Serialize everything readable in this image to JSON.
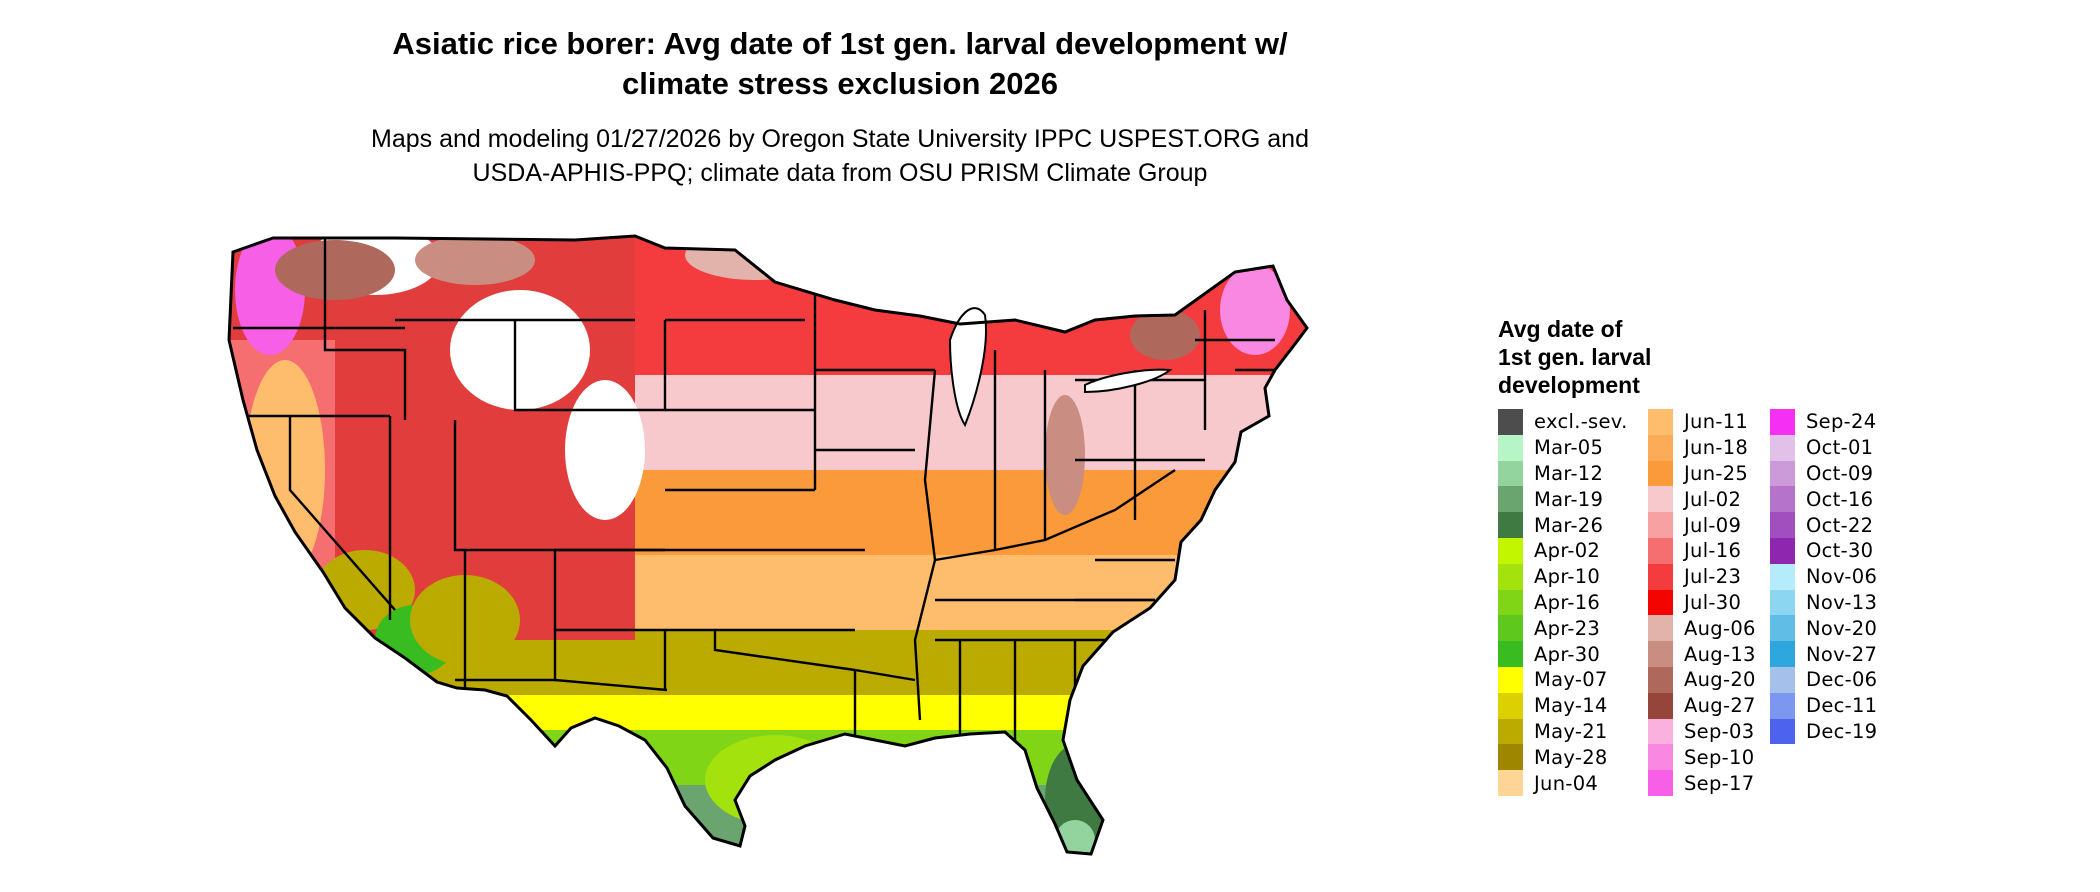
{
  "header": {
    "title_lines": [
      "Asiatic rice borer: Avg date of 1st gen. larval development w/",
      "climate stress exclusion 2026"
    ],
    "subtitle_lines": [
      "Maps and modeling 01/27/2026 by Oregon State University IPPC USPEST.ORG and",
      "USDA-APHIS-PPQ; climate data from OSU PRISM Climate Group"
    ]
  },
  "map": {
    "region": "contiguous-united-states",
    "land_color": "#f2c6ca",
    "border_color": "#000000"
  },
  "legend": {
    "title_lines": [
      "Avg date of",
      "1st gen. larval",
      "development"
    ],
    "columns": [
      [
        {
          "label": "excl.-sev.",
          "color": "#4d4d4d"
        },
        {
          "label": "Mar-05",
          "color": "#b5f5c6"
        },
        {
          "label": "Mar-12",
          "color": "#93d49e"
        },
        {
          "label": "Mar-19",
          "color": "#6aa56f"
        },
        {
          "label": "Mar-26",
          "color": "#3f7a42"
        },
        {
          "label": "Apr-02",
          "color": "#c2f500"
        },
        {
          "label": "Apr-10",
          "color": "#a3e20c"
        },
        {
          "label": "Apr-16",
          "color": "#80d516"
        },
        {
          "label": "Apr-23",
          "color": "#5ec81c"
        },
        {
          "label": "Apr-30",
          "color": "#38bc20"
        },
        {
          "label": "May-07",
          "color": "#ffff00"
        },
        {
          "label": "May-14",
          "color": "#dcd000"
        },
        {
          "label": "May-21",
          "color": "#bbaa00"
        },
        {
          "label": "May-28",
          "color": "#9e8600"
        },
        {
          "label": "Jun-04",
          "color": "#ffd596"
        }
      ],
      [
        {
          "label": "Jun-11",
          "color": "#fdbd6c"
        },
        {
          "label": "Jun-18",
          "color": "#fcac56"
        },
        {
          "label": "Jun-25",
          "color": "#fb9a3a"
        },
        {
          "label": "Jul-02",
          "color": "#f7c9cc"
        },
        {
          "label": "Jul-09",
          "color": "#f7a1a3"
        },
        {
          "label": "Jul-16",
          "color": "#f56f71"
        },
        {
          "label": "Jul-23",
          "color": "#f43c3e"
        },
        {
          "label": "Jul-30",
          "color": "#f40400"
        },
        {
          "label": "Aug-06",
          "color": "#e1b3aa"
        },
        {
          "label": "Aug-13",
          "color": "#c98d81"
        },
        {
          "label": "Aug-20",
          "color": "#ae695c"
        },
        {
          "label": "Aug-27",
          "color": "#95453a"
        },
        {
          "label": "Sep-03",
          "color": "#fbb1dd"
        },
        {
          "label": "Sep-10",
          "color": "#f888e2"
        },
        {
          "label": "Sep-17",
          "color": "#f65fe6"
        }
      ],
      [
        {
          "label": "Sep-24",
          "color": "#f62ff4"
        },
        {
          "label": "Oct-01",
          "color": "#e1c1e7"
        },
        {
          "label": "Oct-09",
          "color": "#cb9ad9"
        },
        {
          "label": "Oct-16",
          "color": "#b673cc"
        },
        {
          "label": "Oct-22",
          "color": "#a14ebf"
        },
        {
          "label": "Oct-30",
          "color": "#8e26b0"
        },
        {
          "label": "Nov-06",
          "color": "#b5ecfb"
        },
        {
          "label": "Nov-13",
          "color": "#8dd6f2"
        },
        {
          "label": "Nov-20",
          "color": "#5fbde6"
        },
        {
          "label": "Nov-27",
          "color": "#2ea6de"
        },
        {
          "label": "Dec-06",
          "color": "#a6c0ec"
        },
        {
          "label": "Dec-11",
          "color": "#7b97f0"
        },
        {
          "label": "Dec-19",
          "color": "#4e63ed"
        }
      ]
    ]
  }
}
